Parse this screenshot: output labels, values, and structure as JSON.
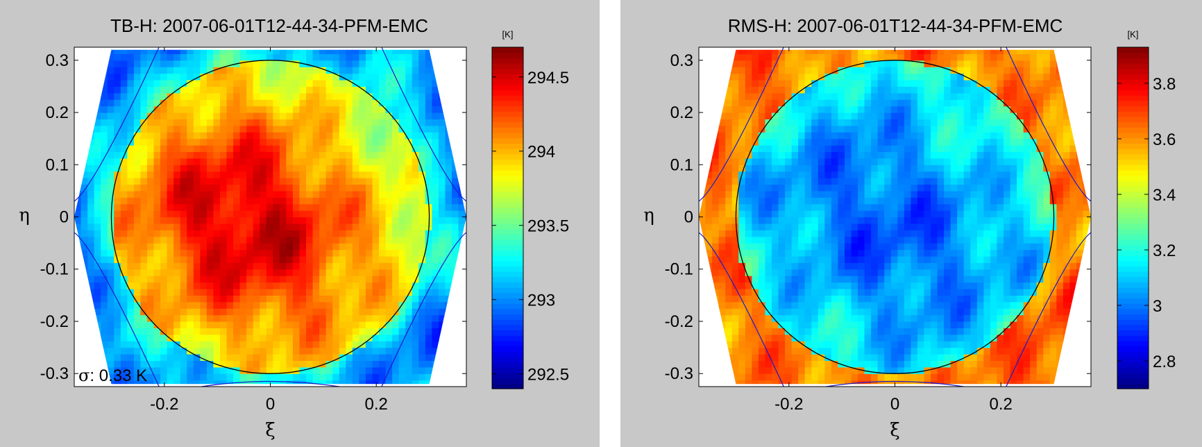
{
  "colors": {
    "background": "#c8c8c8",
    "plot_bg": "#ffffff",
    "circle": "#000000",
    "hex_boundary": "#1a1acc"
  },
  "chart_data": [
    {
      "type": "heatmap",
      "colormap": "jet",
      "title": "TB-H: 2007-06-01T12-44-34-PFM-EMC",
      "xlabel": "ξ",
      "ylabel": "η",
      "xlim": [
        -0.37,
        0.37
      ],
      "ylim": [
        -0.325,
        0.325
      ],
      "xticks": [
        -0.2,
        0,
        0.2
      ],
      "xtick_labels": [
        "-0.2",
        "0",
        "0.2"
      ],
      "yticks": [
        0.3,
        0.2,
        0.1,
        0,
        -0.1,
        -0.2,
        -0.3
      ],
      "ytick_labels": [
        "0.3",
        "0.2",
        "0.1",
        "0",
        "-0.1",
        "-0.2",
        "-0.3"
      ],
      "colorbar": {
        "unit": "[K]",
        "range": [
          292.4,
          294.7
        ],
        "ticks": [
          294.5,
          294,
          293.5,
          293,
          292.5
        ],
        "tick_labels": [
          "294.5",
          "294",
          "293.5",
          "293",
          "292.5"
        ]
      },
      "circle_radius": 0.3,
      "annotation": {
        "symbol": "σ",
        "text": ": 0.33 K"
      },
      "field": {
        "base": 0.55,
        "center_value": 0.92,
        "center": [
          -0.05,
          -0.02
        ],
        "spread": 0.17,
        "edge_value": 0.38,
        "corner_value": 0.27
      }
    },
    {
      "type": "heatmap",
      "colormap": "jet",
      "title": "RMS-H: 2007-06-01T12-44-34-PFM-EMC",
      "xlabel": "ξ",
      "ylabel": "η",
      "xlim": [
        -0.37,
        0.37
      ],
      "ylim": [
        -0.325,
        0.325
      ],
      "xticks": [
        -0.2,
        0,
        0.2
      ],
      "xtick_labels": [
        "-0.2",
        "0",
        "0.2"
      ],
      "yticks": [
        0.3,
        0.2,
        0.1,
        0,
        -0.1,
        -0.2,
        -0.3
      ],
      "ytick_labels": [
        "0.3",
        "0.2",
        "0.1",
        "0",
        "-0.1",
        "-0.2",
        "-0.3"
      ],
      "colorbar": {
        "unit": "[K]",
        "range": [
          2.7,
          3.93
        ],
        "ticks": [
          3.8,
          3.6,
          3.4,
          3.2,
          3.0,
          2.8
        ],
        "tick_labels": [
          "3.8",
          "3.6",
          "3.4",
          "3.2",
          "3",
          "2.8"
        ]
      },
      "circle_radius": 0.3,
      "annotation": null,
      "field": {
        "base": 0.42,
        "center_value": 0.22,
        "center": [
          -0.02,
          -0.02
        ],
        "spread": 0.18,
        "edge_value": 0.72,
        "corner_value": 0.78
      }
    }
  ]
}
